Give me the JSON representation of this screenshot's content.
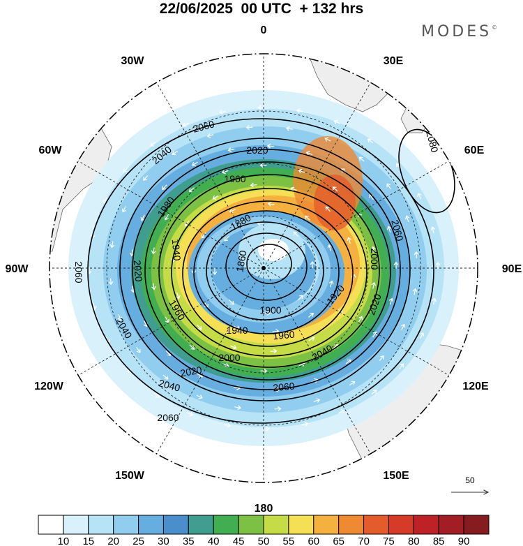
{
  "header": {
    "title": "22/06/2025  00 UTC  + 132 hrs",
    "brand": "MODES",
    "brand_mark": "©"
  },
  "map": {
    "projection": "polar stereographic (south pole)",
    "longitude_labels": [
      "0",
      "30E",
      "60E",
      "90E",
      "120E",
      "150E",
      "180",
      "150W",
      "120W",
      "90W",
      "60W",
      "30W"
    ],
    "contour_labels": [
      "1860",
      "1880",
      "1900",
      "1920",
      "1940",
      "1960",
      "1980",
      "2000",
      "2020",
      "2040",
      "2060",
      "2080"
    ],
    "wind_reference": {
      "value": "50"
    }
  },
  "colorbar": {
    "ticks": [
      "10",
      "15",
      "20",
      "25",
      "30",
      "35",
      "40",
      "45",
      "50",
      "55",
      "60",
      "65",
      "70",
      "75",
      "80",
      "85",
      "90"
    ],
    "colors": [
      "#ffffff",
      "#d9f1fb",
      "#b7e3f6",
      "#90cdee",
      "#66aee0",
      "#4a8ecb",
      "#3f9e8f",
      "#41ae52",
      "#7cc144",
      "#c5dc46",
      "#f4df55",
      "#f4b140",
      "#ef8a32",
      "#e55c2c",
      "#d63a29",
      "#bf2226",
      "#a31d25",
      "#861b20"
    ]
  }
}
